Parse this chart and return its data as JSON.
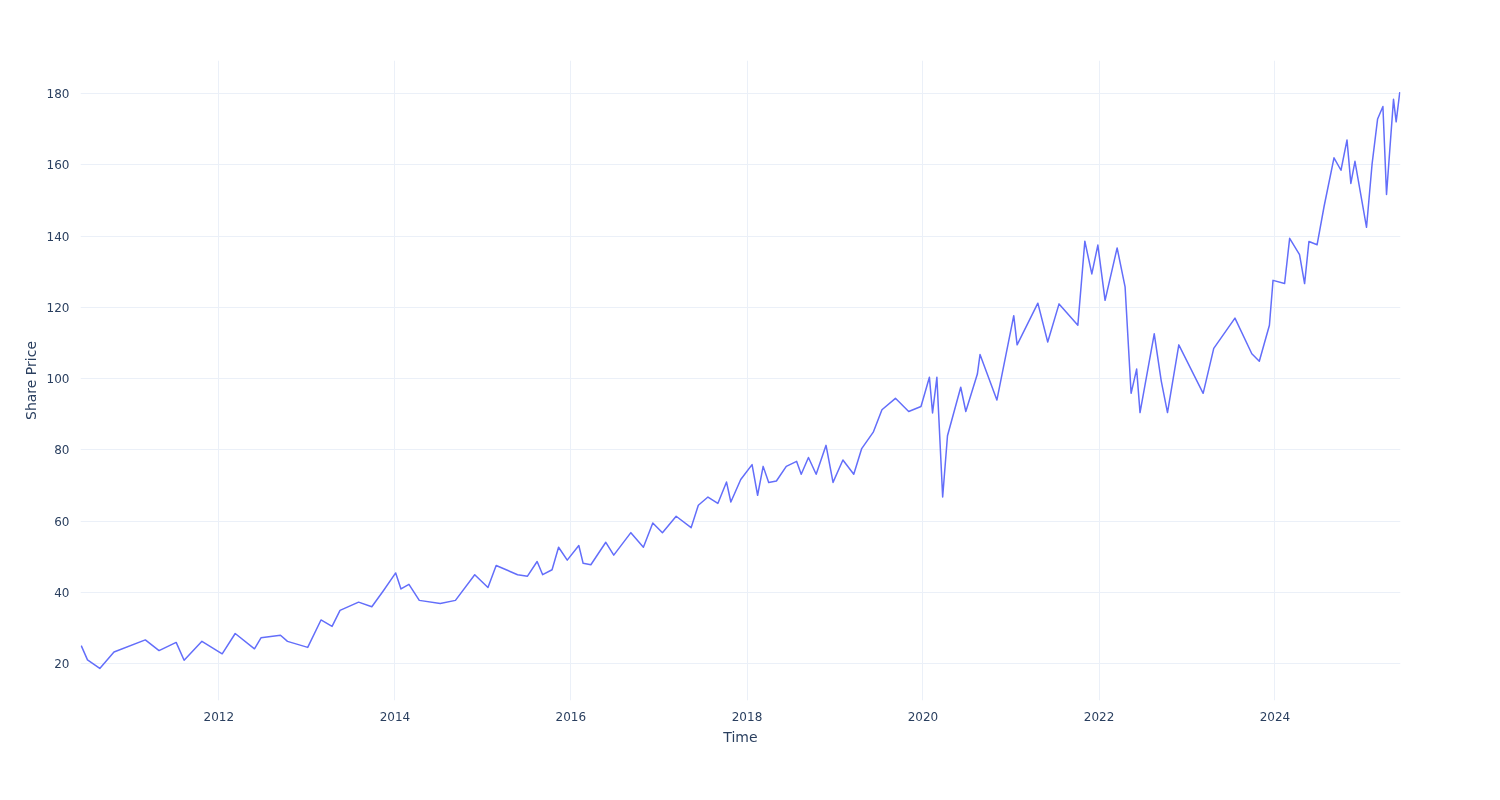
{
  "chart_data": {
    "type": "line",
    "xlabel": "Time",
    "ylabel": "Share Price",
    "xlim": [
      "2010-06-06",
      "2025-06-05"
    ],
    "ylim": [
      9.7,
      189.3
    ],
    "xticks": [
      {
        "value": "2012-01-01",
        "label": "2012"
      },
      {
        "value": "2014-01-01",
        "label": "2014"
      },
      {
        "value": "2016-01-01",
        "label": "2016"
      },
      {
        "value": "2018-01-01",
        "label": "2018"
      },
      {
        "value": "2020-01-01",
        "label": "2020"
      },
      {
        "value": "2022-01-01",
        "label": "2022"
      },
      {
        "value": "2024-01-01",
        "label": "2024"
      }
    ],
    "yticks": [
      20,
      40,
      60,
      80,
      100,
      120,
      140,
      160,
      180
    ],
    "grid": true,
    "x": [
      "2010-06-09",
      "2010-07-05",
      "2010-08-25",
      "2010-10-23",
      "2011-03-02",
      "2011-04-28",
      "2011-07-08",
      "2011-08-10",
      "2011-10-23",
      "2012-01-15",
      "2012-03-09",
      "2012-05-28",
      "2012-06-24",
      "2012-09-13",
      "2012-10-12",
      "2013-01-04",
      "2013-02-28",
      "2013-04-15",
      "2013-05-18",
      "2013-08-03",
      "2013-09-27",
      "2013-11-14",
      "2014-01-04",
      "2014-01-26",
      "2014-02-28",
      "2014-04-12",
      "2014-07-08",
      "2014-09-09",
      "2014-11-28",
      "2015-01-22",
      "2015-02-25",
      "2015-05-25",
      "2015-07-05",
      "2015-08-14",
      "2015-09-06",
      "2015-10-15",
      "2015-11-11",
      "2015-12-17",
      "2016-02-03",
      "2016-02-21",
      "2016-03-24",
      "2016-05-25",
      "2016-06-27",
      "2016-09-06",
      "2016-10-28",
      "2016-12-06",
      "2017-01-15",
      "2017-03-13",
      "2017-05-14",
      "2017-06-13",
      "2017-07-23",
      "2017-09-02",
      "2017-10-08",
      "2017-10-26",
      "2017-12-06",
      "2018-01-22",
      "2018-02-14",
      "2018-03-09",
      "2018-04-01",
      "2018-05-03",
      "2018-06-13",
      "2018-07-26",
      "2018-08-14",
      "2018-09-13",
      "2018-10-15",
      "2018-11-25",
      "2018-12-24",
      "2019-02-03",
      "2019-03-20",
      "2019-04-22",
      "2019-06-09",
      "2019-07-15",
      "2019-09-09",
      "2019-11-03",
      "2019-12-24",
      "2020-01-28",
      "2020-02-10",
      "2020-02-28",
      "2020-03-23",
      "2020-04-12",
      "2020-06-06",
      "2020-06-27",
      "2020-08-14",
      "2020-08-25",
      "2020-11-03",
      "2021-01-12",
      "2021-01-26",
      "2021-04-22",
      "2021-06-02",
      "2021-07-19",
      "2021-10-05",
      "2021-11-03",
      "2021-12-02",
      "2021-12-27",
      "2022-01-26",
      "2022-03-17",
      "2022-04-19",
      "2022-05-14",
      "2022-06-06",
      "2022-06-20",
      "2022-08-18",
      "2022-09-16",
      "2022-10-12",
      "2022-11-28",
      "2023-03-09",
      "2023-04-22",
      "2023-07-19",
      "2023-09-27",
      "2023-10-28",
      "2023-12-09",
      "2023-12-24",
      "2024-02-10",
      "2024-03-02",
      "2024-04-12",
      "2024-05-03",
      "2024-05-21",
      "2024-06-24",
      "2024-07-23",
      "2024-09-02",
      "2024-10-01",
      "2024-10-26",
      "2024-11-11",
      "2024-11-28",
      "2025-01-15",
      "2025-02-07",
      "2025-03-02",
      "2025-03-24",
      "2025-04-08",
      "2025-05-07",
      "2025-05-18",
      "2025-06-02"
    ],
    "series": [
      {
        "color": "#636efa",
        "values": [
          25.1,
          21.1,
          18.7,
          23.3,
          26.7,
          23.7,
          26.0,
          21.0,
          26.3,
          22.8,
          28.5,
          24.2,
          27.3,
          28.0,
          26.3,
          24.6,
          32.3,
          30.5,
          35.0,
          37.3,
          36.0,
          40.5,
          45.5,
          41.0,
          42.3,
          37.8,
          36.9,
          37.8,
          45.0,
          41.4,
          47.6,
          45.0,
          44.6,
          48.7,
          45.0,
          46.4,
          52.7,
          49.1,
          53.2,
          48.2,
          47.8,
          54.1,
          50.5,
          56.8,
          52.7,
          59.5,
          56.8,
          61.4,
          58.2,
          64.5,
          66.8,
          65.0,
          71.0,
          65.4,
          71.7,
          75.9,
          67.3,
          75.4,
          70.9,
          71.3,
          75.4,
          76.8,
          73.2,
          77.9,
          73.2,
          81.3,
          70.9,
          77.2,
          73.2,
          80.4,
          85.0,
          91.3,
          94.5,
          90.8,
          92.2,
          100.4,
          90.4,
          100.4,
          66.8,
          84.0,
          97.6,
          90.8,
          101.3,
          106.8,
          94.0,
          117.7,
          109.5,
          121.2,
          110.3,
          121.0,
          115.0,
          138.6,
          129.4,
          137.5,
          122.0,
          136.7,
          125.8,
          95.9,
          102.7,
          90.5,
          112.6,
          99.4,
          90.5,
          109.5,
          95.9,
          108.5,
          117.0,
          107.0,
          104.9,
          115.0,
          127.6,
          126.7,
          139.4,
          134.8,
          126.7,
          138.5,
          137.6,
          148.4,
          162.0,
          158.5,
          167.0,
          154.8,
          161.0,
          142.5,
          160.2,
          172.9,
          176.4,
          151.7,
          178.4,
          172.1,
          180.4
        ]
      }
    ]
  }
}
